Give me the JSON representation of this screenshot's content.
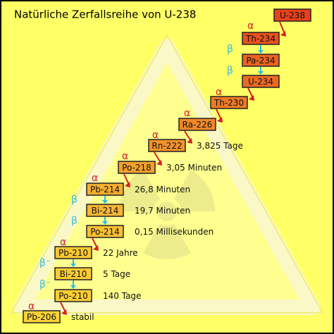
{
  "title": "Natürliche Zerfallsreihe von U-238",
  "nodes": [
    {
      "label": "U-238"
    },
    {
      "label": "Th-234"
    },
    {
      "label": "Pa-234"
    },
    {
      "label": "U-234"
    },
    {
      "label": "Th-230"
    },
    {
      "label": "Ra-226"
    },
    {
      "label": "Rn-222",
      "half_life": "3,825 Tage"
    },
    {
      "label": "Po-218",
      "half_life": "3,05 Minuten"
    },
    {
      "label": "Pb-214",
      "half_life": "26,8 Minuten"
    },
    {
      "label": "Bi-214",
      "half_life": "19,7 Minuten"
    },
    {
      "label": "Po-214",
      "half_life": "0,15 Millisekunden"
    },
    {
      "label": "Pb-210",
      "half_life": "22 Jahre"
    },
    {
      "label": "Bi-210",
      "half_life": "5 Tage"
    },
    {
      "label": "Po-210",
      "half_life": "140 Tage"
    },
    {
      "label": "Pb-206",
      "half_life": "stabil"
    }
  ],
  "transitions": [
    {
      "symbol": "α"
    },
    {
      "symbol": "β"
    },
    {
      "symbol": "β"
    },
    {
      "symbol": "α"
    },
    {
      "symbol": "α"
    },
    {
      "symbol": "α"
    },
    {
      "symbol": "α"
    },
    {
      "symbol": "α"
    },
    {
      "symbol": "β"
    },
    {
      "symbol": "β"
    },
    {
      "symbol": "α"
    },
    {
      "symbol": "β⁻"
    },
    {
      "symbol": "β⁻"
    },
    {
      "symbol": "α"
    }
  ]
}
